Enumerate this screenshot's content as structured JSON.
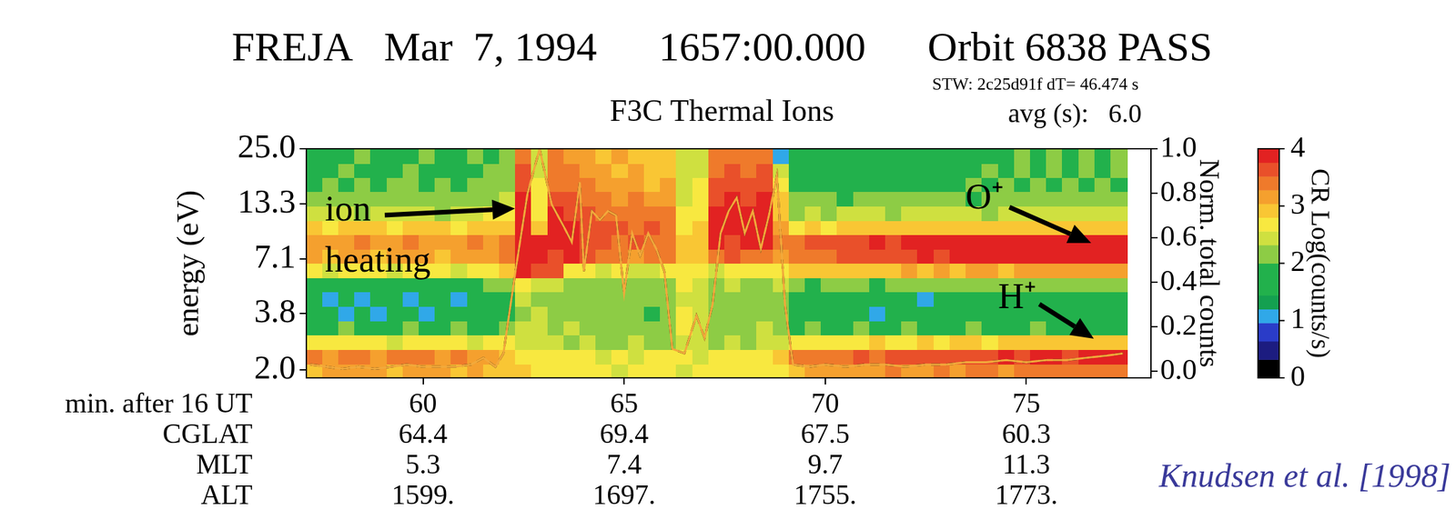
{
  "chart_data": {
    "type": "heatmap",
    "title": "FREJA   Mar  7, 1994      1657:00.000      Orbit 6838 PASS",
    "subtitle": "F3C Thermal Ions",
    "info": [
      "STW: 2c25d91f dT= 46.474 s",
      "avg (s):   6.0"
    ],
    "source": "Knudsen et al. [1998]",
    "x_label": "min. after 16 UT",
    "y_label": "energy (eV)",
    "y2_label": "Norm. total counts",
    "xlim": [
      57.1,
      78.1
    ],
    "xticks": [
      60,
      65,
      70,
      75
    ],
    "ylim": [
      1.82,
      25.0
    ],
    "yticks": [
      {
        "value": 2.0,
        "label": "2.0"
      },
      3.8,
      7.1,
      13.3,
      {
        "value": 25.0,
        "label": "25.0"
      }
    ],
    "log": "y",
    "y2lim": [
      -0.03,
      1.0
    ],
    "y2ticks": [
      {
        "value": 0,
        "label": "0.0"
      },
      0.2,
      0.4,
      0.6,
      0.8,
      {
        "value": 1,
        "label": "1.0"
      }
    ],
    "grid": false,
    "time_bins": [
      57.1,
      57.5,
      57.9,
      58.3,
      58.7,
      59.1,
      59.5,
      59.9,
      60.3,
      60.7,
      61.1,
      61.5,
      61.9,
      62.3,
      62.7,
      63.1,
      63.5,
      63.9,
      64.3,
      64.7,
      65.1,
      65.5,
      65.9,
      66.3,
      66.7,
      67.1,
      67.5,
      67.9,
      68.3,
      68.7,
      69.1,
      69.5,
      69.9,
      70.3,
      70.7,
      71.1,
      71.5,
      71.9,
      72.3,
      72.7,
      73.1,
      73.5,
      73.9,
      74.3,
      74.7,
      75.1,
      75.5,
      75.9,
      76.3,
      76.7,
      77.1,
      77.5
    ],
    "energy_bins": [
      1.82,
      2.14,
      2.53,
      2.98,
      3.51,
      4.13,
      4.86,
      5.73,
      6.75,
      7.95,
      9.37,
      11.03,
      13.0,
      15.31,
      18.04,
      21.25,
      25.0
    ],
    "cells": [
      [
        3.0,
        3.1,
        3.2,
        3.1,
        3.2,
        3.0,
        3.1,
        3.2,
        3.1,
        3.0,
        3.1,
        3.0,
        2.9,
        2.8,
        2.7,
        2.7,
        2.6,
        2.7,
        2.6,
        2.5,
        2.6,
        2.7,
        2.6,
        2.5,
        2.6,
        2.7,
        2.6,
        2.7,
        2.6,
        2.7,
        3.0,
        3.1,
        3.1,
        3.2,
        3.1,
        3.2,
        3.3,
        3.2,
        3.2,
        3.3,
        3.2,
        3.3,
        3.3,
        3.2,
        3.3,
        3.3,
        3.4,
        3.3,
        3.3,
        3.4,
        3.4
      ],
      [
        3.3,
        3.2,
        3.4,
        3.3,
        3.2,
        3.3,
        3.4,
        3.3,
        3.2,
        3.3,
        3.2,
        3.1,
        3.0,
        2.7,
        2.6,
        2.6,
        2.7,
        2.6,
        2.5,
        2.6,
        2.5,
        2.6,
        2.7,
        2.6,
        2.5,
        2.6,
        2.7,
        2.6,
        2.6,
        2.8,
        3.3,
        3.4,
        3.5,
        3.5,
        3.6,
        3.5,
        3.6,
        3.7,
        3.6,
        3.7,
        3.7,
        3.6,
        3.7,
        3.8,
        3.7,
        3.8,
        3.8,
        3.7,
        3.8,
        3.8,
        3.9
      ],
      [
        2.6,
        2.7,
        2.6,
        2.6,
        2.7,
        2.5,
        2.6,
        2.7,
        2.6,
        2.6,
        2.5,
        2.6,
        2.6,
        2.5,
        2.4,
        2.5,
        2.3,
        2.4,
        2.3,
        2.2,
        2.4,
        2.3,
        2.2,
        2.5,
        2.4,
        2.3,
        2.4,
        2.3,
        2.4,
        2.5,
        2.6,
        2.7,
        2.7,
        2.6,
        2.7,
        2.8,
        2.7,
        2.7,
        2.8,
        2.7,
        2.8,
        2.8,
        2.7,
        2.8,
        2.8,
        2.9,
        2.8,
        2.8,
        2.9,
        2.8,
        2.9
      ],
      [
        1.9,
        1.8,
        2.0,
        1.9,
        1.8,
        1.9,
        2.0,
        1.8,
        1.9,
        2.0,
        1.9,
        1.8,
        2.0,
        2.4,
        2.5,
        2.3,
        2.4,
        2.2,
        2.3,
        2.1,
        2.2,
        2.3,
        2.1,
        2.6,
        2.5,
        2.3,
        2.2,
        2.3,
        2.4,
        2.3,
        1.9,
        2.0,
        1.8,
        1.9,
        2.0,
        1.9,
        1.8,
        2.0,
        1.9,
        1.8,
        1.9,
        2.0,
        1.9,
        1.8,
        1.9,
        2.0,
        1.9,
        1.8,
        1.9,
        1.8,
        1.9
      ],
      [
        1.6,
        1.7,
        1.0,
        1.6,
        1.1,
        1.5,
        1.7,
        1.0,
        1.6,
        1.5,
        1.7,
        1.6,
        1.8,
        2.3,
        2.4,
        2.2,
        2.1,
        2.3,
        2.0,
        2.1,
        2.0,
        1.9,
        2.0,
        2.6,
        2.5,
        2.2,
        2.1,
        2.2,
        2.3,
        2.2,
        1.6,
        1.7,
        1.6,
        1.5,
        1.7,
        1.1,
        1.6,
        1.7,
        1.6,
        1.5,
        1.7,
        1.6,
        1.5,
        1.6,
        1.7,
        1.6,
        1.5,
        1.6,
        1.7,
        1.6,
        1.6
      ],
      [
        1.7,
        1.0,
        1.6,
        1.1,
        1.7,
        1.6,
        1.0,
        1.7,
        1.6,
        1.1,
        1.7,
        1.6,
        1.7,
        2.4,
        2.3,
        2.2,
        2.3,
        2.1,
        2.2,
        2.0,
        2.1,
        2.0,
        2.1,
        2.5,
        2.4,
        2.2,
        2.3,
        2.2,
        2.3,
        2.2,
        1.7,
        1.6,
        1.7,
        1.8,
        1.6,
        1.7,
        1.6,
        1.7,
        1.1,
        1.7,
        1.6,
        1.7,
        1.8,
        1.7,
        1.6,
        1.7,
        1.8,
        1.7,
        1.7,
        1.6,
        1.7
      ],
      [
        1.8,
        1.9,
        1.8,
        1.7,
        1.9,
        1.8,
        1.7,
        1.8,
        1.9,
        1.8,
        1.9,
        2.0,
        2.1,
        2.6,
        2.5,
        2.4,
        2.3,
        2.2,
        2.3,
        2.2,
        2.1,
        2.2,
        2.3,
        2.6,
        2.5,
        2.3,
        2.4,
        2.3,
        2.2,
        2.4,
        2.0,
        1.9,
        2.0,
        2.1,
        2.0,
        1.9,
        2.0,
        2.1,
        2.0,
        2.1,
        2.0,
        2.1,
        2.2,
        2.1,
        2.0,
        2.1,
        2.2,
        2.1,
        2.2,
        2.1,
        2.2
      ],
      [
        2.6,
        2.5,
        2.6,
        2.7,
        2.6,
        2.5,
        2.6,
        2.7,
        2.6,
        2.5,
        2.6,
        2.7,
        2.8,
        3.8,
        3.7,
        3.6,
        2.7,
        2.6,
        2.5,
        2.6,
        2.4,
        2.5,
        2.6,
        2.7,
        2.6,
        2.5,
        2.6,
        2.7,
        2.6,
        2.7,
        2.8,
        2.9,
        2.8,
        3.0,
        2.9,
        3.0,
        3.0,
        3.1,
        3.0,
        3.1,
        3.0,
        3.1,
        3.1,
        3.0,
        3.1,
        3.2,
        3.1,
        3.1,
        3.2,
        3.1,
        3.2
      ],
      [
        3.1,
        3.0,
        3.2,
        3.1,
        3.0,
        3.1,
        3.2,
        3.1,
        3.0,
        3.2,
        3.1,
        3.2,
        3.3,
        3.9,
        3.8,
        3.7,
        3.8,
        3.6,
        3.4,
        3.3,
        3.2,
        3.4,
        3.3,
        2.9,
        3.0,
        3.5,
        3.6,
        3.5,
        3.4,
        3.2,
        3.4,
        3.5,
        3.5,
        3.6,
        3.6,
        3.7,
        3.6,
        3.7,
        3.8,
        3.7,
        3.8,
        3.8,
        3.9,
        3.8,
        3.9,
        3.9,
        3.9,
        3.8,
        3.9,
        3.9,
        3.9
      ],
      [
        3.2,
        3.1,
        3.2,
        3.3,
        3.1,
        3.2,
        3.3,
        3.2,
        3.1,
        3.2,
        3.3,
        3.2,
        3.4,
        3.9,
        3.8,
        3.9,
        3.8,
        3.7,
        3.6,
        3.5,
        3.6,
        3.5,
        3.4,
        2.8,
        2.9,
        3.8,
        3.7,
        3.9,
        3.8,
        3.3,
        3.5,
        3.6,
        3.6,
        3.7,
        3.7,
        3.8,
        3.7,
        3.8,
        3.8,
        3.9,
        3.8,
        3.9,
        3.9,
        3.9,
        3.9,
        3.9,
        3.9,
        3.9,
        3.9,
        3.9,
        3.9
      ],
      [
        2.8,
        2.7,
        2.8,
        2.9,
        2.8,
        2.7,
        2.8,
        2.9,
        2.8,
        2.7,
        2.8,
        2.9,
        3.0,
        3.9,
        2.8,
        3.8,
        3.9,
        3.7,
        3.6,
        3.7,
        3.5,
        3.6,
        3.4,
        2.7,
        2.8,
        3.9,
        3.8,
        3.9,
        3.8,
        3.2,
        2.7,
        2.8,
        2.7,
        2.8,
        2.9,
        2.8,
        2.8,
        2.9,
        2.8,
        2.8,
        2.9,
        2.8,
        2.9,
        2.8,
        2.9,
        2.8,
        2.9,
        2.8,
        2.8,
        2.9,
        2.8
      ],
      [
        2.4,
        2.5,
        2.4,
        2.3,
        2.5,
        2.4,
        2.5,
        2.4,
        2.3,
        2.4,
        2.5,
        2.6,
        2.7,
        3.9,
        2.7,
        3.8,
        3.7,
        3.6,
        3.5,
        3.4,
        3.5,
        3.4,
        3.3,
        2.6,
        2.7,
        3.8,
        3.9,
        3.8,
        3.9,
        3.0,
        2.3,
        2.4,
        2.3,
        2.4,
        2.5,
        2.4,
        2.3,
        2.4,
        2.5,
        2.4,
        2.5,
        2.4,
        2.3,
        2.4,
        2.5,
        2.4,
        2.5,
        2.4,
        2.5,
        2.4,
        2.5
      ],
      [
        2.1,
        2.2,
        2.3,
        2.2,
        2.1,
        2.2,
        2.3,
        2.2,
        2.1,
        2.2,
        2.3,
        2.2,
        2.4,
        3.8,
        2.6,
        3.7,
        3.6,
        3.4,
        3.3,
        3.2,
        3.3,
        3.2,
        3.1,
        2.5,
        2.6,
        3.7,
        3.8,
        3.7,
        3.8,
        2.8,
        2.0,
        2.1,
        2.0,
        1.9,
        2.1,
        2.0,
        2.1,
        2.2,
        2.0,
        2.1,
        2.0,
        1.9,
        2.1,
        2.2,
        2.1,
        2.0,
        2.1,
        2.2,
        2.1,
        2.0,
        2.1
      ],
      [
        1.9,
        2.0,
        1.8,
        2.1,
        1.9,
        2.0,
        2.1,
        1.9,
        2.0,
        1.8,
        2.1,
        2.0,
        2.3,
        3.7,
        2.6,
        3.5,
        3.4,
        3.3,
        3.1,
        3.2,
        3.1,
        3.0,
        3.1,
        2.5,
        2.6,
        3.6,
        3.7,
        3.6,
        3.7,
        2.6,
        1.8,
        1.9,
        1.8,
        1.7,
        1.8,
        1.9,
        1.8,
        1.7,
        1.8,
        1.9,
        1.8,
        2.1,
        1.8,
        2.1,
        1.8,
        2.1,
        1.8,
        2.1,
        1.8,
        2.1,
        1.8
      ],
      [
        1.8,
        1.7,
        2.1,
        1.8,
        1.7,
        1.8,
        2.1,
        1.7,
        1.8,
        1.7,
        1.8,
        2.1,
        2.2,
        3.6,
        2.5,
        3.4,
        3.3,
        3.2,
        3.1,
        3.0,
        3.1,
        3.0,
        2.9,
        2.4,
        2.5,
        3.5,
        3.6,
        3.5,
        3.6,
        2.4,
        1.7,
        1.8,
        1.7,
        1.6,
        1.7,
        1.8,
        1.7,
        1.6,
        1.7,
        1.8,
        1.7,
        1.8,
        2.1,
        1.8,
        2.1,
        1.8,
        2.1,
        1.8,
        2.1,
        1.8,
        2.1
      ],
      [
        1.7,
        1.8,
        1.7,
        2.1,
        1.7,
        1.8,
        1.7,
        2.1,
        1.8,
        1.7,
        2.1,
        1.8,
        2.2,
        3.5,
        2.5,
        3.3,
        3.2,
        3.1,
        3.0,
        3.1,
        3.0,
        2.9,
        2.8,
        2.4,
        2.5,
        3.4,
        3.5,
        3.4,
        3.5,
        1.1,
        1.7,
        1.6,
        1.7,
        1.8,
        1.7,
        1.6,
        1.7,
        1.8,
        1.7,
        1.6,
        1.7,
        1.6,
        1.7,
        1.8,
        2.1,
        1.7,
        2.1,
        1.7,
        2.1,
        1.7,
        2.1
      ]
    ],
    "colorbar": {
      "label": "CR Log(counts/s)",
      "range": [
        0,
        4
      ],
      "ticks": [
        0,
        1,
        2,
        3,
        4
      ]
    },
    "series": [
      {
        "axis": "y2",
        "color": "#000000",
        "line_style": "dashed",
        "x": [
          57.2,
          57.6,
          58.0,
          58.4,
          58.8,
          59.2,
          59.6,
          60.0,
          60.4,
          60.8,
          61.2,
          61.5,
          61.8,
          62.0,
          62.3,
          62.6,
          62.9,
          63.2,
          63.5,
          63.7,
          63.9,
          64.0,
          64.2,
          64.4,
          64.6,
          64.8,
          65.0,
          65.2,
          65.4,
          65.6,
          65.8,
          66.0,
          66.2,
          66.5,
          66.8,
          67.0,
          67.2,
          67.4,
          67.6,
          67.8,
          68.0,
          68.2,
          68.4,
          68.6,
          68.8,
          69.0,
          69.2,
          69.6,
          70.0,
          70.5,
          71.0,
          71.5,
          72.0,
          72.5,
          73.0,
          73.5,
          74.0,
          74.5,
          75.0,
          75.5,
          76.0,
          76.5,
          77.0,
          77.4
        ],
        "values": [
          0.03,
          0.02,
          0.01,
          0.02,
          0.01,
          0.02,
          0.03,
          0.02,
          0.02,
          0.02,
          0.03,
          0.06,
          0.02,
          0.08,
          0.45,
          0.8,
          1.0,
          0.75,
          0.65,
          0.58,
          0.85,
          0.45,
          0.72,
          0.68,
          0.72,
          0.7,
          0.35,
          0.62,
          0.52,
          0.62,
          0.55,
          0.45,
          0.1,
          0.08,
          0.25,
          0.15,
          0.3,
          0.62,
          0.72,
          0.78,
          0.62,
          0.72,
          0.55,
          0.7,
          0.88,
          0.3,
          0.03,
          0.02,
          0.03,
          0.02,
          0.03,
          0.03,
          0.02,
          0.03,
          0.03,
          0.04,
          0.04,
          0.05,
          0.04,
          0.05,
          0.05,
          0.06,
          0.07,
          0.08
        ]
      }
    ],
    "ephemeris": [
      {
        "name": "CGLAT",
        "values": [
          64.4,
          69.4,
          67.5,
          60.3
        ]
      },
      {
        "name": "MLT",
        "values": [
          5.3,
          7.4,
          9.7,
          11.3
        ]
      },
      {
        "name": "ALT",
        "values": [
          1599,
          1697,
          1755,
          1773
        ],
        "value_labels": [
          "1599.",
          "1697.",
          "1755.",
          "1773."
        ]
      }
    ],
    "annotations": [
      "ion heating",
      "O⁺",
      "H⁺"
    ]
  }
}
